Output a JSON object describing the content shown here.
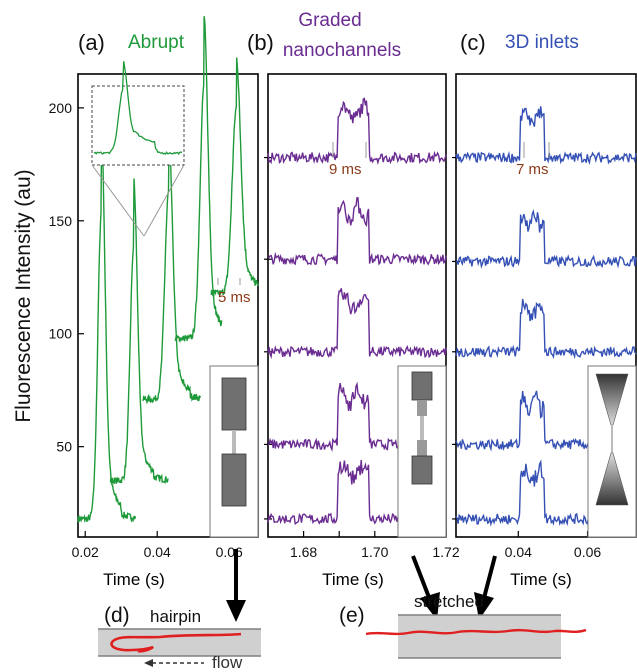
{
  "colors": {
    "abrupt": "#1f9a3a",
    "graded": "#6a2c91",
    "inlets": "#3550b5",
    "annotation": "#8b3a1a",
    "flow_line": "#e02020",
    "channel_fill": "#d0d0d0",
    "channel_edge": "#808080"
  },
  "ylabel": "Fluorescence Intensity (au)",
  "chart_data": [
    {
      "type": "line",
      "panel": "(a)",
      "title": "Abrupt",
      "xlabel": "Time (s)",
      "ylabel": "Fluorescence Intensity (au)",
      "xlim": [
        0.018,
        0.068
      ],
      "ylim": [
        10,
        215
      ],
      "xticks": [
        0.02,
        0.04,
        0.06
      ],
      "xtick_labels": [
        "0.02",
        "0.04",
        "0.06"
      ],
      "yticks": [
        50,
        100,
        150,
        200
      ],
      "ytick_labels": [
        "50",
        "100",
        "150",
        "200"
      ],
      "annotation": "5 ms",
      "series": [
        {
          "x0": 0.018,
          "x1": 0.034,
          "baseline": 18,
          "peak_x": 0.0245,
          "peak": 154,
          "width": 0.0022
        },
        {
          "x0": 0.027,
          "x1": 0.043,
          "baseline": 35,
          "peak_x": 0.0335,
          "peak": 139,
          "width": 0.0022
        },
        {
          "x0": 0.036,
          "x1": 0.052,
          "baseline": 71,
          "peak_x": 0.0432,
          "peak": 163,
          "width": 0.0024
        },
        {
          "x0": 0.045,
          "x1": 0.058,
          "baseline": 98,
          "peak_x": 0.053,
          "peak": 210,
          "width": 0.0024
        },
        {
          "x0": 0.055,
          "x1": 0.068,
          "baseline": 118,
          "peak_x": 0.062,
          "peak": 200,
          "width": 0.0026
        }
      ]
    },
    {
      "type": "line",
      "panel": "(b)",
      "title": "Graded nanochannels",
      "xlabel": "Time (s)",
      "xlim": [
        1.67,
        1.72
      ],
      "ylim": [
        10,
        215
      ],
      "xticks": [
        1.68,
        1.69,
        1.7,
        1.71,
        1.72
      ],
      "xtick_labels": [
        "1.68",
        "",
        "1.70",
        "",
        "1.72"
      ],
      "annotation": "9 ms",
      "pulse": {
        "start": 1.6895,
        "end": 1.6985
      },
      "series": [
        {
          "baseline": 178,
          "top": 201
        },
        {
          "baseline": 133,
          "top": 157
        },
        {
          "baseline": 92,
          "top": 117
        },
        {
          "baseline": 51,
          "top": 75
        },
        {
          "baseline": 18,
          "top": 42
        }
      ]
    },
    {
      "type": "line",
      "panel": "(c)",
      "title": "3D inlets",
      "xlabel": "Time (s)",
      "xlim": [
        0.022,
        0.074
      ],
      "ylim": [
        10,
        215
      ],
      "xticks": [
        0.04,
        0.06
      ],
      "xtick_labels": [
        "0.04",
        "0.06"
      ],
      "annotation": "7 ms",
      "pulse": {
        "start": 0.0405,
        "end": 0.0475
      },
      "series": [
        {
          "baseline": 178,
          "top": 198
        },
        {
          "baseline": 132,
          "top": 153
        },
        {
          "baseline": 92,
          "top": 113
        },
        {
          "baseline": 51,
          "top": 72
        },
        {
          "baseline": 18,
          "top": 40
        }
      ]
    }
  ],
  "schematics": {
    "d": {
      "label": "(d)",
      "title": "hairpin",
      "flow_label": "flow"
    },
    "e": {
      "label": "(e)",
      "title": "stretched"
    }
  }
}
